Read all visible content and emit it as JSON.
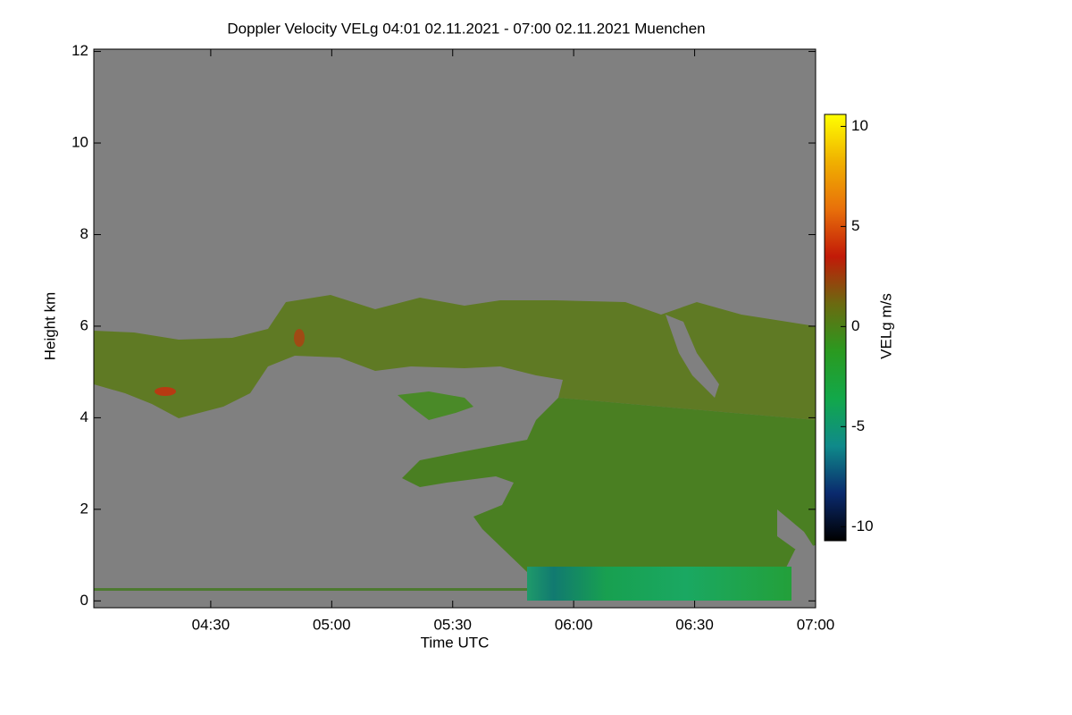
{
  "chart_data": {
    "type": "heatmap",
    "title": "Doppler Velocity VELg   04:01 02.11.2021 - 07:00 02.11.2021 Muenchen",
    "xlabel": "Time UTC",
    "ylabel": "Height km",
    "xlim": [
      241,
      420
    ],
    "xticks": [
      {
        "value": 270,
        "label": "04:30"
      },
      {
        "value": 300,
        "label": "05:00"
      },
      {
        "value": 330,
        "label": "05:30"
      },
      {
        "value": 360,
        "label": "06:00"
      },
      {
        "value": 390,
        "label": "06:30"
      },
      {
        "value": 420,
        "label": "07:00"
      }
    ],
    "ylim": [
      -0.15,
      12.05
    ],
    "yticks": [
      0,
      2,
      4,
      6,
      8,
      10,
      12
    ],
    "background": "#808080",
    "colorbar": {
      "label": "VELg m/s",
      "lim": [
        -10.7,
        10.6
      ],
      "ticks": [
        -10,
        -5,
        0,
        5,
        10
      ],
      "colors": [
        "#000000",
        "#0a2a6e",
        "#0f8a8a",
        "#12a84a",
        "#2a9a20",
        "#6b6a10",
        "#c21a08",
        "#e8700a",
        "#f0b000",
        "#ffff00"
      ]
    }
  }
}
